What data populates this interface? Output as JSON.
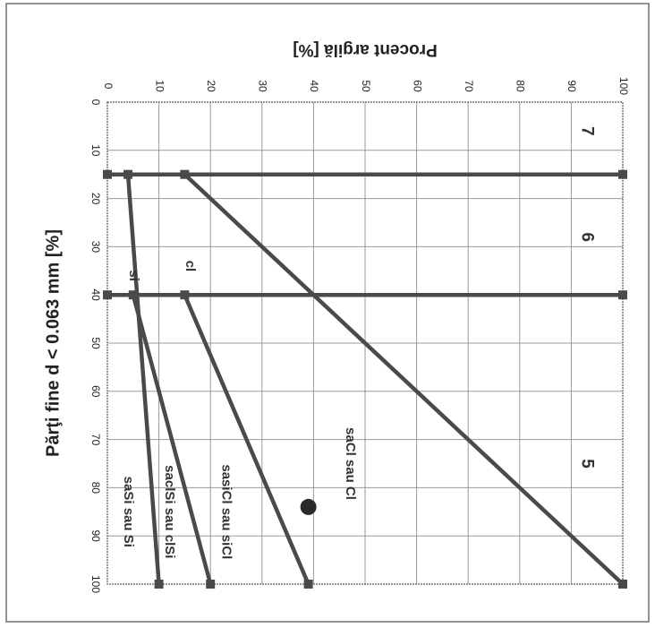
{
  "chart_data": {
    "type": "line",
    "title": "",
    "xlabel": "Părţi fine d < 0.063 mm [%]",
    "ylabel": "Procent argilă [%]",
    "xlim": [
      0,
      100
    ],
    "ylim": [
      0,
      100
    ],
    "x_ticks": [
      "0",
      "10",
      "20",
      "30",
      "40",
      "50",
      "60",
      "70",
      "80",
      "90",
      "100"
    ],
    "y_ticks": [
      "0",
      "10",
      "20",
      "30",
      "40",
      "50",
      "60",
      "70",
      "80",
      "90",
      "100"
    ],
    "grid": true,
    "rotated_clockwise_deg": 90,
    "boundary_lines": [
      {
        "points": [
          [
            15,
            0
          ],
          [
            15,
            100
          ]
        ]
      },
      {
        "points": [
          [
            40,
            0
          ],
          [
            40,
            100
          ]
        ]
      },
      {
        "points": [
          [
            15,
            15
          ],
          [
            100,
            100
          ]
        ]
      },
      {
        "points": [
          [
            40,
            15
          ],
          [
            100,
            39
          ]
        ]
      },
      {
        "points": [
          [
            15,
            4
          ],
          [
            100,
            10
          ]
        ]
      },
      {
        "points": [
          [
            40,
            5
          ],
          [
            100,
            20
          ]
        ]
      }
    ],
    "point": {
      "x": 84,
      "y": 39
    },
    "region_labels": [
      {
        "text": "7",
        "x": 6,
        "y": 93
      },
      {
        "text": "6",
        "x": 28,
        "y": 93
      },
      {
        "text": "5",
        "x": 75,
        "y": 93
      },
      {
        "text": "si",
        "x": 36,
        "y": 5
      },
      {
        "text": "cl",
        "x": 34,
        "y": 16
      },
      {
        "text": "saSi  sau Si",
        "x": 85,
        "y": 4
      },
      {
        "text": "saclSi  sau  clSi",
        "x": 85,
        "y": 12
      },
      {
        "text": "sasiCl  sau siCl",
        "x": 85,
        "y": 23
      },
      {
        "text": "saCl  sau Cl",
        "x": 75,
        "y": 47
      }
    ]
  }
}
